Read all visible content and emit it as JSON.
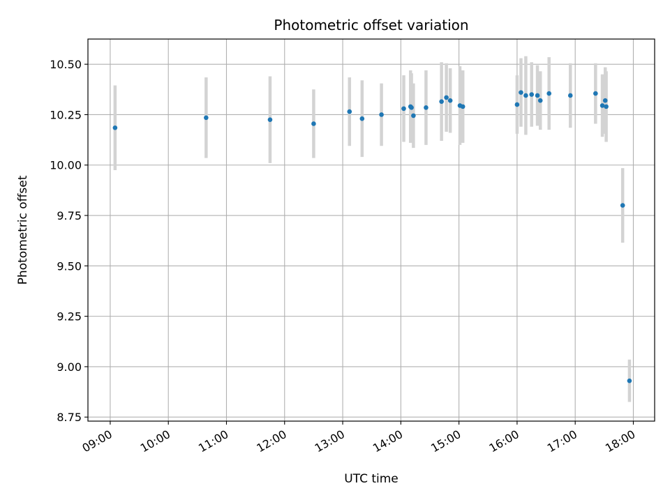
{
  "chart_data": {
    "type": "scatter",
    "title": "Photometric offset variation",
    "xlabel": "UTC time",
    "ylabel": "Photometric offset",
    "grid": true,
    "x_tick_labels": [
      "09:00",
      "10:00",
      "11:00",
      "12:00",
      "13:00",
      "14:00",
      "15:00",
      "16:00",
      "17:00",
      "18:00"
    ],
    "y_tick_labels": [
      "8.75",
      "9.00",
      "9.25",
      "9.50",
      "9.75",
      "10.00",
      "10.25",
      "10.50"
    ],
    "xlim": [
      "08:37",
      "18:22"
    ],
    "ylim": [
      8.73,
      10.625
    ],
    "colors": {
      "marker": "#1f77b4",
      "errorbar": "#d3d3d3",
      "grid": "#b0b0b0"
    },
    "points": [
      {
        "x": "09:05",
        "y": 10.185,
        "yerr": 0.21
      },
      {
        "x": "10:39",
        "y": 10.235,
        "yerr": 0.2
      },
      {
        "x": "11:45",
        "y": 10.225,
        "yerr": 0.215
      },
      {
        "x": "12:30",
        "y": 10.205,
        "yerr": 0.17
      },
      {
        "x": "13:07",
        "y": 10.265,
        "yerr": 0.17
      },
      {
        "x": "13:20",
        "y": 10.23,
        "yerr": 0.19
      },
      {
        "x": "13:40",
        "y": 10.25,
        "yerr": 0.155
      },
      {
        "x": "14:03",
        "y": 10.28,
        "yerr": 0.165
      },
      {
        "x": "14:10",
        "y": 10.29,
        "yerr": 0.18
      },
      {
        "x": "14:11",
        "y": 10.285,
        "yerr": 0.17
      },
      {
        "x": "14:13",
        "y": 10.245,
        "yerr": 0.16
      },
      {
        "x": "14:26",
        "y": 10.285,
        "yerr": 0.185
      },
      {
        "x": "14:42",
        "y": 10.315,
        "yerr": 0.195
      },
      {
        "x": "14:47",
        "y": 10.335,
        "yerr": 0.17
      },
      {
        "x": "14:51",
        "y": 10.32,
        "yerr": 0.16
      },
      {
        "x": "15:01",
        "y": 10.295,
        "yerr": 0.195
      },
      {
        "x": "15:04",
        "y": 10.29,
        "yerr": 0.18
      },
      {
        "x": "16:00",
        "y": 10.3,
        "yerr": 0.145
      },
      {
        "x": "16:04",
        "y": 10.36,
        "yerr": 0.17
      },
      {
        "x": "16:09",
        "y": 10.345,
        "yerr": 0.195
      },
      {
        "x": "16:15",
        "y": 10.35,
        "yerr": 0.16
      },
      {
        "x": "16:21",
        "y": 10.345,
        "yerr": 0.15
      },
      {
        "x": "16:24",
        "y": 10.32,
        "yerr": 0.145
      },
      {
        "x": "16:33",
        "y": 10.355,
        "yerr": 0.18
      },
      {
        "x": "16:55",
        "y": 10.345,
        "yerr": 0.16
      },
      {
        "x": "17:21",
        "y": 10.355,
        "yerr": 0.15
      },
      {
        "x": "17:28",
        "y": 10.295,
        "yerr": 0.155
      },
      {
        "x": "17:31",
        "y": 10.32,
        "yerr": 0.165
      },
      {
        "x": "17:32",
        "y": 10.29,
        "yerr": 0.175
      },
      {
        "x": "17:49",
        "y": 9.8,
        "yerr": 0.185
      },
      {
        "x": "17:56",
        "y": 8.93,
        "yerr": 0.105
      }
    ]
  }
}
